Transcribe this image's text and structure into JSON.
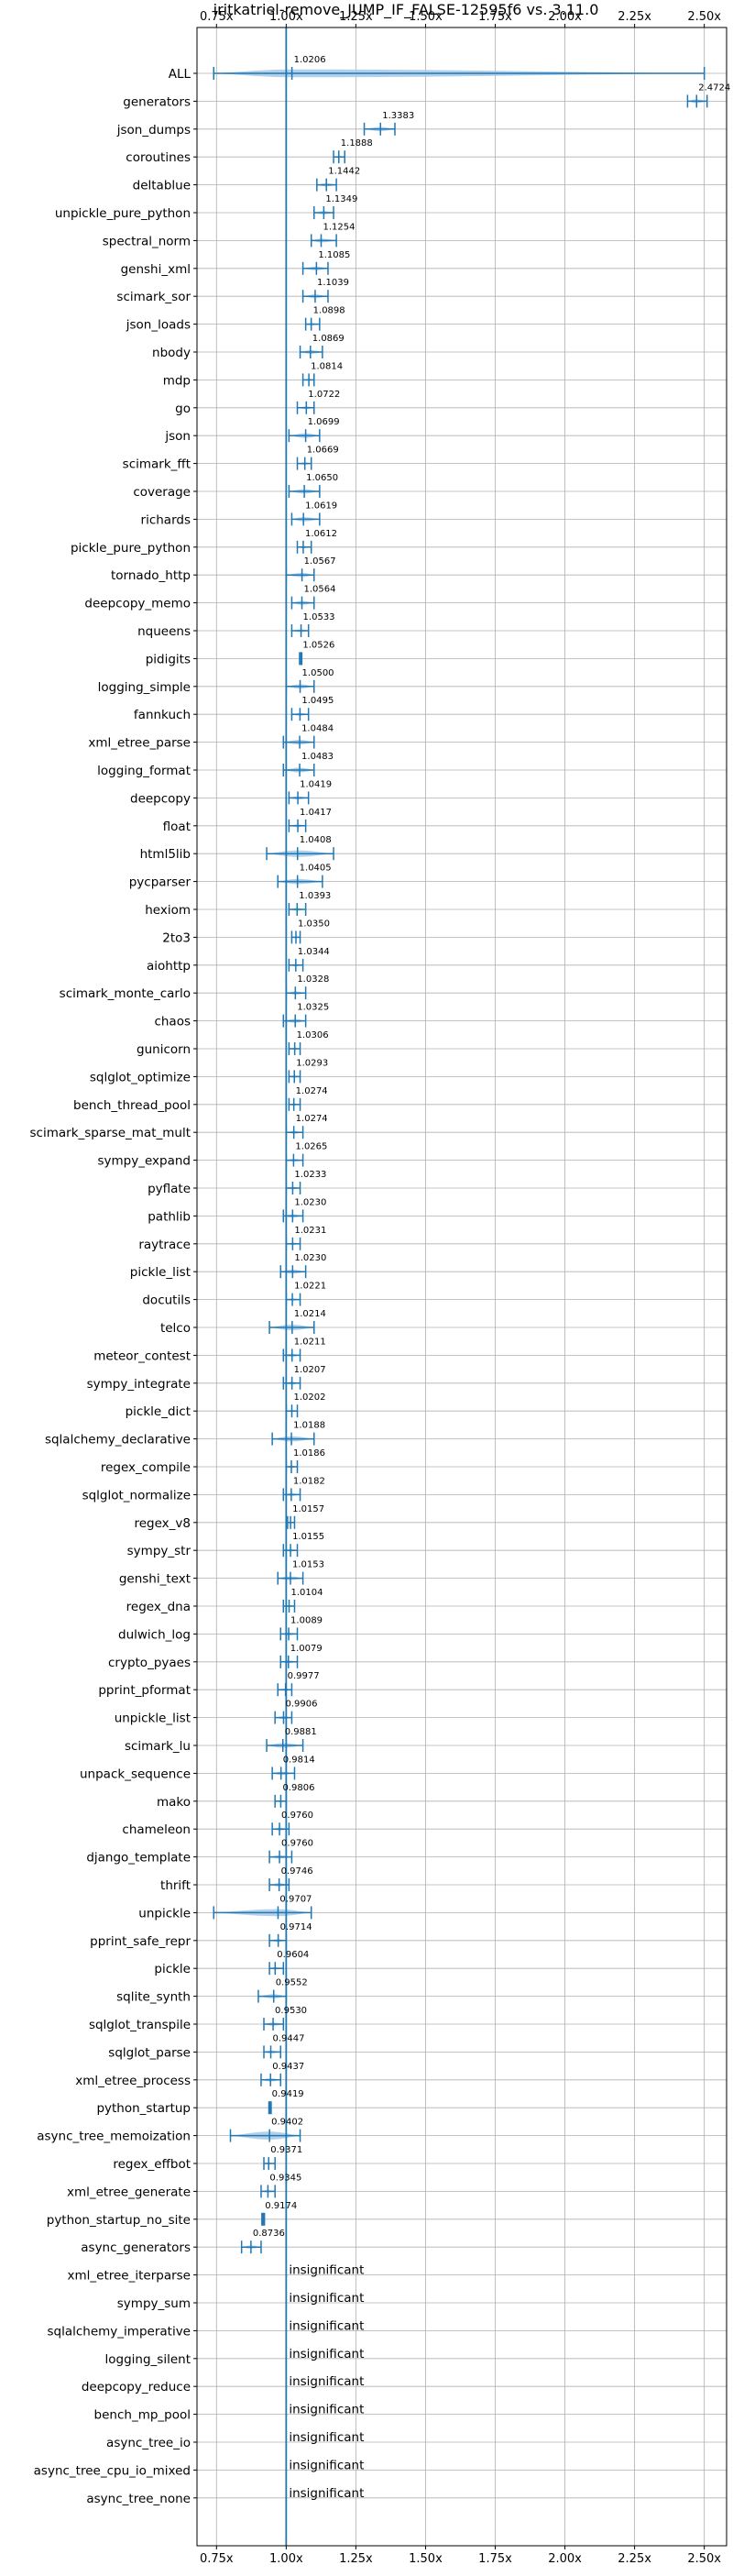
{
  "chart_data": {
    "type": "violin",
    "title": "iritkatriel-remove_JUMP_IF_FALSE-12595f6 vs. 3.11.0",
    "xlim": [
      0.68,
      2.58
    ],
    "xticks": [
      0.75,
      1.0,
      1.25,
      1.5,
      1.75,
      2.0,
      2.25,
      2.5
    ],
    "xtick_labels": [
      "0.75x",
      "1.00x",
      "1.25x",
      "1.50x",
      "1.75x",
      "2.00x",
      "2.25x",
      "2.50x"
    ],
    "reference_line": 1.0,
    "grid": true,
    "colors": {
      "line": "#1f77b4",
      "violin": "#a6c8e6",
      "grid": "#b0b0b0"
    },
    "insignificant_label": "insignificant",
    "benchmarks": [
      {
        "name": "ALL",
        "value": 1.0206,
        "label": "1.0206",
        "min": 0.74,
        "max": 2.5,
        "width": 0.085
      },
      {
        "name": "generators",
        "value": 2.4724,
        "label": "2.4724",
        "min": 2.44,
        "max": 2.51,
        "width": 0.04
      },
      {
        "name": "json_dumps",
        "value": 1.3383,
        "label": "1.3383",
        "min": 1.28,
        "max": 1.39,
        "width": 0.045
      },
      {
        "name": "coroutines",
        "value": 1.1888,
        "label": "1.1888",
        "min": 1.17,
        "max": 1.21,
        "width": 0.02
      },
      {
        "name": "deltablue",
        "value": 1.1442,
        "label": "1.1442",
        "min": 1.11,
        "max": 1.18,
        "width": 0.035
      },
      {
        "name": "unpickle_pure_python",
        "value": 1.1349,
        "label": "1.1349",
        "min": 1.1,
        "max": 1.17,
        "width": 0.035
      },
      {
        "name": "spectral_norm",
        "value": 1.1254,
        "label": "1.1254",
        "min": 1.09,
        "max": 1.18,
        "width": 0.04
      },
      {
        "name": "genshi_xml",
        "value": 1.1085,
        "label": "1.1085",
        "min": 1.06,
        "max": 1.15,
        "width": 0.04
      },
      {
        "name": "scimark_sor",
        "value": 1.1039,
        "label": "1.1039",
        "min": 1.06,
        "max": 1.15,
        "width": 0.04
      },
      {
        "name": "json_loads",
        "value": 1.0898,
        "label": "1.0898",
        "min": 1.07,
        "max": 1.12,
        "width": 0.025
      },
      {
        "name": "nbody",
        "value": 1.0869,
        "label": "1.0869",
        "min": 1.05,
        "max": 1.13,
        "width": 0.04
      },
      {
        "name": "mdp",
        "value": 1.0814,
        "label": "1.0814",
        "min": 1.06,
        "max": 1.1,
        "width": 0.02
      },
      {
        "name": "go",
        "value": 1.0722,
        "label": "1.0722",
        "min": 1.04,
        "max": 1.1,
        "width": 0.03
      },
      {
        "name": "json",
        "value": 1.0699,
        "label": "1.0699",
        "min": 1.01,
        "max": 1.12,
        "width": 0.05
      },
      {
        "name": "scimark_fft",
        "value": 1.0669,
        "label": "1.0669",
        "min": 1.04,
        "max": 1.09,
        "width": 0.025
      },
      {
        "name": "coverage",
        "value": 1.065,
        "label": "1.0650",
        "min": 1.01,
        "max": 1.12,
        "width": 0.045
      },
      {
        "name": "richards",
        "value": 1.0619,
        "label": "1.0619",
        "min": 1.02,
        "max": 1.12,
        "width": 0.045
      },
      {
        "name": "pickle_pure_python",
        "value": 1.0612,
        "label": "1.0612",
        "min": 1.04,
        "max": 1.09,
        "width": 0.025
      },
      {
        "name": "tornado_http",
        "value": 1.0567,
        "label": "1.0567",
        "min": 1.0,
        "max": 1.1,
        "width": 0.045
      },
      {
        "name": "deepcopy_memo",
        "value": 1.0564,
        "label": "1.0564",
        "min": 1.02,
        "max": 1.1,
        "width": 0.04
      },
      {
        "name": "nqueens",
        "value": 1.0533,
        "label": "1.0533",
        "min": 1.02,
        "max": 1.08,
        "width": 0.03
      },
      {
        "name": "pidigits",
        "value": 1.0526,
        "label": "1.0526",
        "min": 1.048,
        "max": 1.056,
        "width": 0.005
      },
      {
        "name": "logging_simple",
        "value": 1.05,
        "label": "1.0500",
        "min": 1.0,
        "max": 1.1,
        "width": 0.045
      },
      {
        "name": "fannkuch",
        "value": 1.0495,
        "label": "1.0495",
        "min": 1.02,
        "max": 1.08,
        "width": 0.03
      },
      {
        "name": "xml_etree_parse",
        "value": 1.0484,
        "label": "1.0484",
        "min": 0.99,
        "max": 1.1,
        "width": 0.05
      },
      {
        "name": "logging_format",
        "value": 1.0483,
        "label": "1.0483",
        "min": 0.99,
        "max": 1.1,
        "width": 0.05
      },
      {
        "name": "deepcopy",
        "value": 1.0419,
        "label": "1.0419",
        "min": 1.01,
        "max": 1.08,
        "width": 0.035
      },
      {
        "name": "float",
        "value": 1.0417,
        "label": "1.0417",
        "min": 1.01,
        "max": 1.07,
        "width": 0.03
      },
      {
        "name": "html5lib",
        "value": 1.0408,
        "label": "1.0408",
        "min": 0.93,
        "max": 1.17,
        "width": 0.07
      },
      {
        "name": "pycparser",
        "value": 1.0405,
        "label": "1.0405",
        "min": 0.97,
        "max": 1.13,
        "width": 0.055
      },
      {
        "name": "hexiom",
        "value": 1.0393,
        "label": "1.0393",
        "min": 1.01,
        "max": 1.07,
        "width": 0.03
      },
      {
        "name": "2to3",
        "value": 1.035,
        "label": "1.0350",
        "min": 1.02,
        "max": 1.05,
        "width": 0.02
      },
      {
        "name": "aiohttp",
        "value": 1.0344,
        "label": "1.0344",
        "min": 1.01,
        "max": 1.06,
        "width": 0.025
      },
      {
        "name": "scimark_monte_carlo",
        "value": 1.0328,
        "label": "1.0328",
        "min": 1.0,
        "max": 1.07,
        "width": 0.035
      },
      {
        "name": "chaos",
        "value": 1.0325,
        "label": "1.0325",
        "min": 0.99,
        "max": 1.07,
        "width": 0.04
      },
      {
        "name": "gunicorn",
        "value": 1.0306,
        "label": "1.0306",
        "min": 1.01,
        "max": 1.05,
        "width": 0.02
      },
      {
        "name": "sqlglot_optimize",
        "value": 1.0293,
        "label": "1.0293",
        "min": 1.01,
        "max": 1.05,
        "width": 0.025
      },
      {
        "name": "bench_thread_pool",
        "value": 1.0274,
        "label": "1.0274",
        "min": 1.01,
        "max": 1.05,
        "width": 0.025
      },
      {
        "name": "scimark_sparse_mat_mult",
        "value": 1.0274,
        "label": "1.0274",
        "min": 1.0,
        "max": 1.06,
        "width": 0.03
      },
      {
        "name": "sympy_expand",
        "value": 1.0265,
        "label": "1.0265",
        "min": 1.0,
        "max": 1.06,
        "width": 0.03
      },
      {
        "name": "pyflate",
        "value": 1.0233,
        "label": "1.0233",
        "min": 1.0,
        "max": 1.05,
        "width": 0.025
      },
      {
        "name": "pathlib",
        "value": 1.023,
        "label": "1.0230",
        "min": 0.99,
        "max": 1.06,
        "width": 0.035
      },
      {
        "name": "raytrace",
        "value": 1.0231,
        "label": "1.0231",
        "min": 1.0,
        "max": 1.05,
        "width": 0.025
      },
      {
        "name": "pickle_list",
        "value": 1.023,
        "label": "1.0230",
        "min": 0.98,
        "max": 1.07,
        "width": 0.045
      },
      {
        "name": "docutils",
        "value": 1.0221,
        "label": "1.0221",
        "min": 1.0,
        "max": 1.05,
        "width": 0.025
      },
      {
        "name": "telco",
        "value": 1.0214,
        "label": "1.0214",
        "min": 0.94,
        "max": 1.1,
        "width": 0.06
      },
      {
        "name": "meteor_contest",
        "value": 1.0211,
        "label": "1.0211",
        "min": 0.99,
        "max": 1.05,
        "width": 0.03
      },
      {
        "name": "sympy_integrate",
        "value": 1.0207,
        "label": "1.0207",
        "min": 0.99,
        "max": 1.05,
        "width": 0.03
      },
      {
        "name": "pickle_dict",
        "value": 1.0202,
        "label": "1.0202",
        "min": 1.0,
        "max": 1.04,
        "width": 0.02
      },
      {
        "name": "sqlalchemy_declarative",
        "value": 1.0188,
        "label": "1.0188",
        "min": 0.95,
        "max": 1.1,
        "width": 0.055
      },
      {
        "name": "regex_compile",
        "value": 1.0186,
        "label": "1.0186",
        "min": 1.0,
        "max": 1.04,
        "width": 0.025
      },
      {
        "name": "sqlglot_normalize",
        "value": 1.0182,
        "label": "1.0182",
        "min": 0.99,
        "max": 1.05,
        "width": 0.03
      },
      {
        "name": "regex_v8",
        "value": 1.0157,
        "label": "1.0157",
        "min": 1.005,
        "max": 1.03,
        "width": 0.015
      },
      {
        "name": "sympy_str",
        "value": 1.0155,
        "label": "1.0155",
        "min": 0.99,
        "max": 1.04,
        "width": 0.025
      },
      {
        "name": "genshi_text",
        "value": 1.0153,
        "label": "1.0153",
        "min": 0.97,
        "max": 1.06,
        "width": 0.04
      },
      {
        "name": "regex_dna",
        "value": 1.0104,
        "label": "1.0104",
        "min": 0.99,
        "max": 1.03,
        "width": 0.02
      },
      {
        "name": "dulwich_log",
        "value": 1.0089,
        "label": "1.0089",
        "min": 0.98,
        "max": 1.04,
        "width": 0.03
      },
      {
        "name": "crypto_pyaes",
        "value": 1.0079,
        "label": "1.0079",
        "min": 0.98,
        "max": 1.04,
        "width": 0.03
      },
      {
        "name": "pprint_pformat",
        "value": 0.9977,
        "label": "0.9977",
        "min": 0.97,
        "max": 1.02,
        "width": 0.025
      },
      {
        "name": "unpickle_list",
        "value": 0.9906,
        "label": "0.9906",
        "min": 0.96,
        "max": 1.02,
        "width": 0.03
      },
      {
        "name": "scimark_lu",
        "value": 0.9881,
        "label": "0.9881",
        "min": 0.93,
        "max": 1.06,
        "width": 0.05
      },
      {
        "name": "unpack_sequence",
        "value": 0.9814,
        "label": "0.9814",
        "min": 0.95,
        "max": 1.03,
        "width": 0.035
      },
      {
        "name": "mako",
        "value": 0.9806,
        "label": "0.9806",
        "min": 0.96,
        "max": 1.0,
        "width": 0.02
      },
      {
        "name": "chameleon",
        "value": 0.976,
        "label": "0.9760",
        "min": 0.95,
        "max": 1.01,
        "width": 0.03
      },
      {
        "name": "django_template",
        "value": 0.976,
        "label": "0.9760",
        "min": 0.94,
        "max": 1.02,
        "width": 0.035
      },
      {
        "name": "thrift",
        "value": 0.9746,
        "label": "0.9746",
        "min": 0.94,
        "max": 1.01,
        "width": 0.035
      },
      {
        "name": "unpickle",
        "value": 0.9707,
        "label": "0.9707",
        "min": 0.74,
        "max": 1.09,
        "width": 0.075
      },
      {
        "name": "pprint_safe_repr",
        "value": 0.9714,
        "label": "0.9714",
        "min": 0.94,
        "max": 1.0,
        "width": 0.03
      },
      {
        "name": "pickle",
        "value": 0.9604,
        "label": "0.9604",
        "min": 0.94,
        "max": 0.99,
        "width": 0.025
      },
      {
        "name": "sqlite_synth",
        "value": 0.9552,
        "label": "0.9552",
        "min": 0.9,
        "max": 1.0,
        "width": 0.045
      },
      {
        "name": "sqlglot_transpile",
        "value": 0.953,
        "label": "0.9530",
        "min": 0.92,
        "max": 0.99,
        "width": 0.035
      },
      {
        "name": "sqlglot_parse",
        "value": 0.9447,
        "label": "0.9447",
        "min": 0.92,
        "max": 0.98,
        "width": 0.03
      },
      {
        "name": "xml_etree_process",
        "value": 0.9437,
        "label": "0.9437",
        "min": 0.91,
        "max": 0.98,
        "width": 0.035
      },
      {
        "name": "python_startup",
        "value": 0.9419,
        "label": "0.9419",
        "min": 0.938,
        "max": 0.946,
        "width": 0.005
      },
      {
        "name": "async_tree_memoization",
        "value": 0.9402,
        "label": "0.9402",
        "min": 0.8,
        "max": 1.05,
        "width": 0.085
      },
      {
        "name": "regex_effbot",
        "value": 0.9371,
        "label": "0.9371",
        "min": 0.92,
        "max": 0.96,
        "width": 0.02
      },
      {
        "name": "xml_etree_generate",
        "value": 0.9345,
        "label": "0.9345",
        "min": 0.91,
        "max": 0.96,
        "width": 0.025
      },
      {
        "name": "python_startup_no_site",
        "value": 0.9174,
        "label": "0.9174",
        "min": 0.913,
        "max": 0.922,
        "width": 0.005
      },
      {
        "name": "async_generators",
        "value": 0.8736,
        "label": "0.8736",
        "min": 0.84,
        "max": 0.91,
        "width": 0.035
      },
      {
        "name": "xml_etree_iterparse",
        "value": null,
        "label": "insignificant"
      },
      {
        "name": "sympy_sum",
        "value": null,
        "label": "insignificant"
      },
      {
        "name": "sqlalchemy_imperative",
        "value": null,
        "label": "insignificant"
      },
      {
        "name": "logging_silent",
        "value": null,
        "label": "insignificant"
      },
      {
        "name": "deepcopy_reduce",
        "value": null,
        "label": "insignificant"
      },
      {
        "name": "bench_mp_pool",
        "value": null,
        "label": "insignificant"
      },
      {
        "name": "async_tree_io",
        "value": null,
        "label": "insignificant"
      },
      {
        "name": "async_tree_cpu_io_mixed",
        "value": null,
        "label": "insignificant"
      },
      {
        "name": "async_tree_none",
        "value": null,
        "label": "insignificant"
      }
    ]
  }
}
